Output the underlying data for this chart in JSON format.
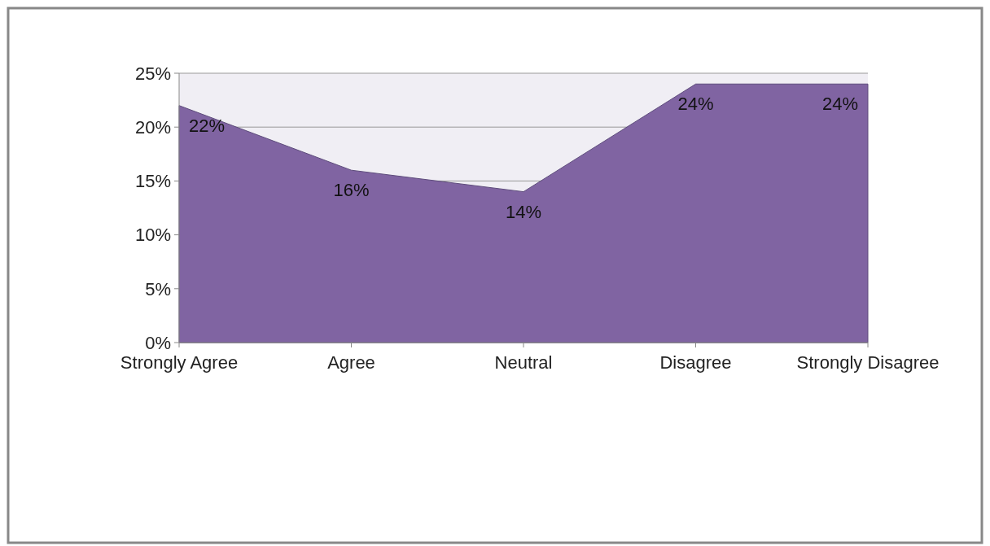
{
  "chart_data": {
    "type": "area",
    "categories": [
      "Strongly Agree",
      "Agree",
      "Neutral",
      "Disagree",
      "Strongly Disagree"
    ],
    "values": [
      22,
      16,
      14,
      24,
      24
    ],
    "value_labels": [
      "22%",
      "16%",
      "14%",
      "24%",
      "24%"
    ],
    "color": "#8064a2",
    "ylim": [
      0,
      25
    ],
    "yticks": [
      {
        "value": 0,
        "label": "0%"
      },
      {
        "value": 5,
        "label": "5%"
      },
      {
        "value": 10,
        "label": "10%"
      },
      {
        "value": 15,
        "label": "15%"
      },
      {
        "value": 20,
        "label": "20%"
      },
      {
        "value": 25,
        "label": "25%"
      }
    ],
    "grid": "y"
  }
}
